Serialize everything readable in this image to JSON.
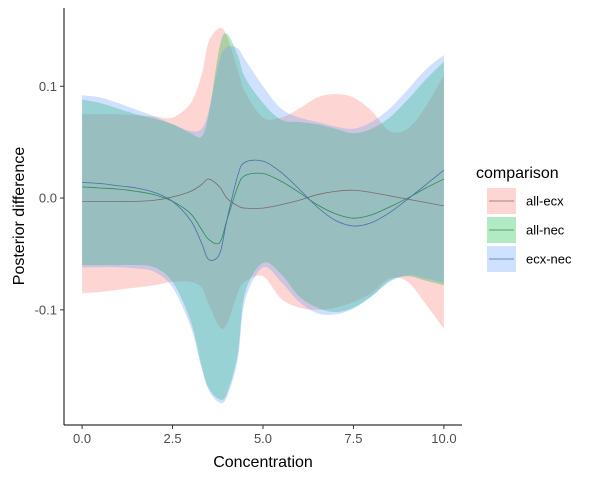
{
  "chart_data": {
    "type": "area",
    "title": "",
    "xlabel": "Concentration",
    "ylabel": "Posterior difference",
    "xlim": [
      -0.5,
      10.5
    ],
    "ylim": [
      -0.203,
      0.17
    ],
    "xticks": [
      0.0,
      2.5,
      5.0,
      7.5,
      10.0
    ],
    "xtick_labels": [
      "0.0",
      "2.5",
      "5.0",
      "7.5",
      "10.0"
    ],
    "yticks": [
      -0.1,
      0.0,
      0.1
    ],
    "ytick_labels": [
      "-0.1",
      "0.0",
      "0.1"
    ],
    "grid": false,
    "legend": {
      "title": "comparison",
      "placement": "right",
      "entries": [
        "all-ecx",
        "all-nec",
        "ecx-nec"
      ]
    },
    "x": [
      0,
      0.5,
      1,
      1.5,
      2,
      2.5,
      3,
      3.3,
      3.5,
      3.8,
      4,
      4.3,
      4.5,
      5,
      5.5,
      6,
      6.5,
      7,
      7.5,
      8,
      8.5,
      9,
      9.5,
      10
    ],
    "series": [
      {
        "name": "all-ecx",
        "fill": "#F8766D",
        "line": "#7f6a6a",
        "mean": [
          -0.003,
          -0.003,
          -0.003,
          -0.003,
          -0.002,
          0.001,
          0.006,
          0.012,
          0.017,
          0.01,
          0.0,
          -0.007,
          -0.009,
          -0.009,
          -0.006,
          -0.002,
          0.003,
          0.006,
          0.007,
          0.005,
          0.002,
          -0.001,
          -0.004,
          -0.007
        ],
        "upper": [
          0.075,
          0.075,
          0.075,
          0.074,
          0.073,
          0.072,
          0.085,
          0.11,
          0.14,
          0.152,
          0.145,
          0.115,
          0.095,
          0.072,
          0.072,
          0.08,
          0.09,
          0.093,
          0.09,
          0.078,
          0.06,
          0.062,
          0.082,
          0.11
        ],
        "lower": [
          -0.085,
          -0.084,
          -0.082,
          -0.08,
          -0.078,
          -0.075,
          -0.075,
          -0.08,
          -0.095,
          -0.115,
          -0.113,
          -0.085,
          -0.075,
          -0.07,
          -0.09,
          -0.098,
          -0.1,
          -0.098,
          -0.093,
          -0.085,
          -0.072,
          -0.075,
          -0.095,
          -0.117
        ]
      },
      {
        "name": "all-nec",
        "fill": "#00BA38",
        "line": "#2e8b57",
        "mean": [
          0.01,
          0.009,
          0.008,
          0.006,
          0.003,
          -0.003,
          -0.014,
          -0.028,
          -0.037,
          -0.04,
          -0.02,
          0.01,
          0.02,
          0.022,
          0.015,
          0.005,
          -0.006,
          -0.014,
          -0.018,
          -0.015,
          -0.008,
          0.0,
          0.009,
          0.017
        ],
        "upper": [
          0.088,
          0.085,
          0.08,
          0.075,
          0.071,
          0.066,
          0.058,
          0.055,
          0.075,
          0.135,
          0.147,
          0.128,
          0.108,
          0.085,
          0.07,
          0.068,
          0.066,
          0.062,
          0.058,
          0.062,
          0.072,
          0.088,
          0.106,
          0.122
        ],
        "lower": [
          -0.06,
          -0.06,
          -0.06,
          -0.06,
          -0.062,
          -0.075,
          -0.11,
          -0.15,
          -0.17,
          -0.18,
          -0.175,
          -0.14,
          -0.085,
          -0.058,
          -0.068,
          -0.088,
          -0.098,
          -0.102,
          -0.098,
          -0.088,
          -0.074,
          -0.07,
          -0.074,
          -0.078
        ]
      },
      {
        "name": "ecx-nec",
        "fill": "#619CFF",
        "line": "#4a6fa8",
        "mean": [
          0.014,
          0.013,
          0.011,
          0.009,
          0.005,
          -0.003,
          -0.02,
          -0.04,
          -0.055,
          -0.05,
          -0.02,
          0.02,
          0.032,
          0.033,
          0.023,
          0.008,
          -0.008,
          -0.02,
          -0.025,
          -0.022,
          -0.013,
          -0.001,
          0.012,
          0.025
        ],
        "upper": [
          0.092,
          0.09,
          0.085,
          0.079,
          0.073,
          0.066,
          0.06,
          0.062,
          0.078,
          0.123,
          0.135,
          0.134,
          0.124,
          0.1,
          0.08,
          0.072,
          0.068,
          0.064,
          0.062,
          0.068,
          0.08,
          0.097,
          0.115,
          0.128
        ],
        "lower": [
          -0.062,
          -0.062,
          -0.062,
          -0.063,
          -0.066,
          -0.08,
          -0.115,
          -0.152,
          -0.172,
          -0.183,
          -0.178,
          -0.145,
          -0.092,
          -0.062,
          -0.075,
          -0.093,
          -0.103,
          -0.104,
          -0.099,
          -0.088,
          -0.075,
          -0.069,
          -0.072,
          -0.076
        ]
      }
    ]
  }
}
